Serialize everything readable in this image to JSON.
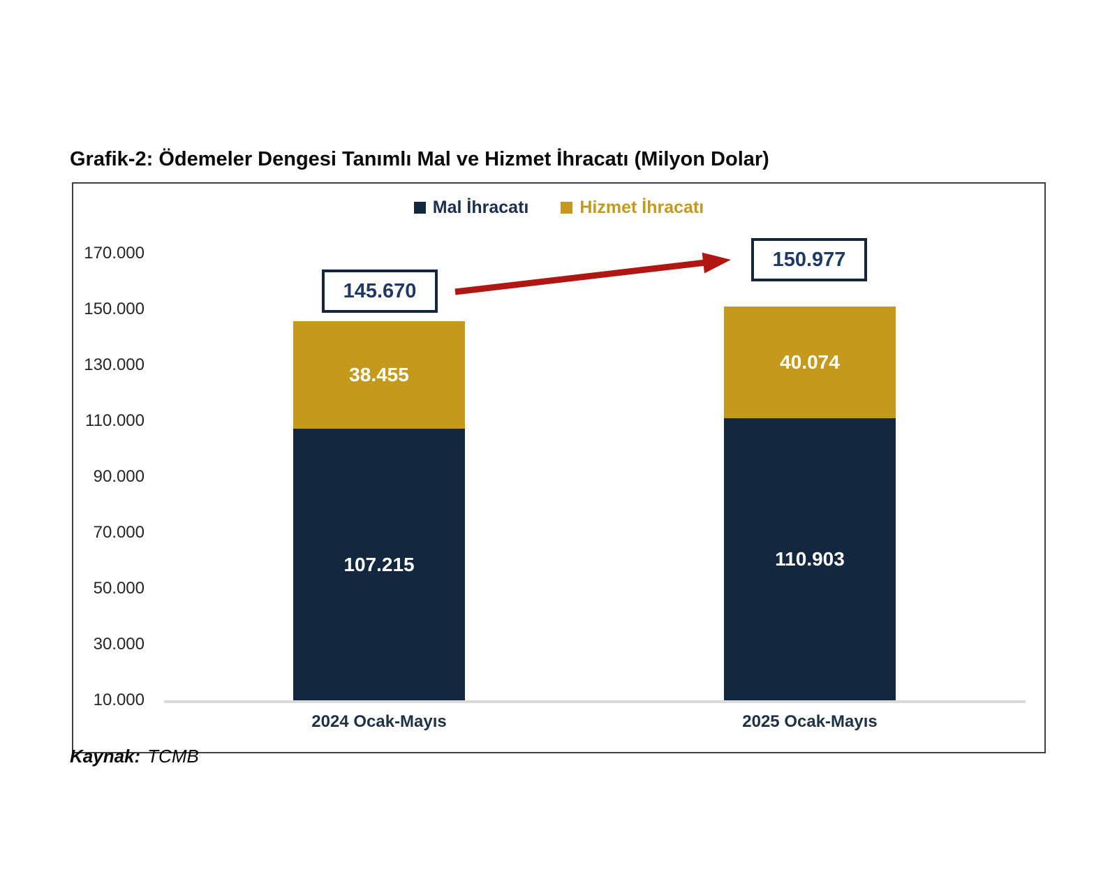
{
  "page": {
    "source_label": "Kaynak:",
    "source_value": "TCMB"
  },
  "legend": {
    "items": [
      {
        "label": "Mal İhracatı",
        "swatch_color": "#13273f",
        "text_color": "#1b2f4e"
      },
      {
        "label": "Hizmet İhracatı",
        "swatch_color": "#c4991c",
        "text_color": "#c4991c"
      }
    ]
  },
  "chart_data": {
    "type": "bar",
    "stacked": true,
    "title": "Grafik-2: Ödemeler Dengesi Tanımlı Mal ve Hizmet İhracatı (Milyon Dolar)",
    "unit": "Milyon Dolar",
    "categories": [
      "2024 Ocak-Mayıs",
      "2025 Ocak-Mayıs"
    ],
    "series": [
      {
        "name": "Mal İhracatı",
        "color": "#13273f",
        "values": [
          107215,
          110903
        ],
        "labels": [
          "107.215",
          "110.903"
        ]
      },
      {
        "name": "Hizmet İhracatı",
        "color": "#c4991c",
        "values": [
          38455,
          40074
        ],
        "labels": [
          "38.455",
          "40.074"
        ]
      }
    ],
    "totals": {
      "values": [
        145670,
        150977
      ],
      "labels": [
        "145.670",
        "150.977"
      ]
    },
    "ylim": [
      10000,
      170000
    ],
    "yticks": [
      {
        "value": 170000,
        "label": "170.000"
      },
      {
        "value": 150000,
        "label": "150.000"
      },
      {
        "value": 130000,
        "label": "130.000"
      },
      {
        "value": 110000,
        "label": "110.000"
      },
      {
        "value": 90000,
        "label": "90.000"
      },
      {
        "value": 70000,
        "label": "70.000"
      },
      {
        "value": 50000,
        "label": "50.000"
      },
      {
        "value": 30000,
        "label": "30.000"
      },
      {
        "value": 10000,
        "label": "10.000"
      }
    ],
    "xlabel": "",
    "ylabel": "",
    "grid": false,
    "legend_position": "top",
    "annotation_arrow_color": "#b01712"
  }
}
